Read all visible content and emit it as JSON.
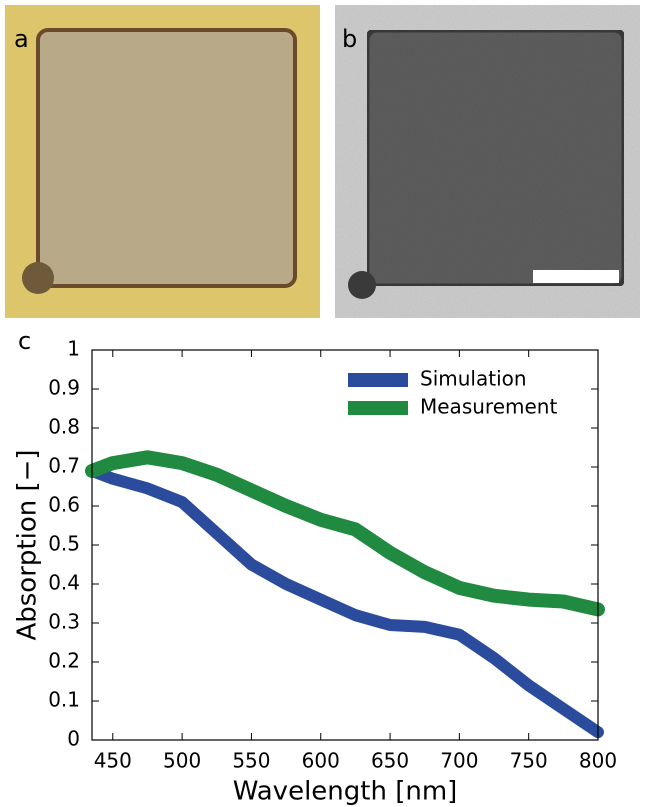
{
  "panel_labels": [
    "a",
    "b",
    "c"
  ],
  "chart_data": {
    "type": "line",
    "xlabel": "Wavelength [nm]",
    "ylabel": "Absorption [−]",
    "x": [
      435,
      450,
      475,
      500,
      525,
      550,
      575,
      600,
      625,
      650,
      675,
      700,
      725,
      750,
      775,
      800
    ],
    "series": [
      {
        "name": "Simulation",
        "color": "#2b4c9c",
        "values": [
          0.69,
          0.67,
          0.645,
          0.61,
          0.53,
          0.45,
          0.4,
          0.36,
          0.32,
          0.295,
          0.29,
          0.27,
          0.21,
          0.14,
          0.08,
          0.02
        ]
      },
      {
        "name": "Measurement",
        "color": "#1f8a40",
        "values": [
          0.69,
          0.71,
          0.725,
          0.71,
          0.68,
          0.64,
          0.6,
          0.565,
          0.54,
          0.48,
          0.43,
          0.39,
          0.37,
          0.36,
          0.355,
          0.335
        ]
      }
    ],
    "xlim": [
      435,
      800
    ],
    "xticks": [
      450,
      500,
      550,
      600,
      650,
      700,
      750,
      800
    ],
    "ylim": [
      0,
      1
    ],
    "yticks": [
      0,
      0.1,
      0.2,
      0.3,
      0.4,
      0.5,
      0.6,
      0.7,
      0.8,
      0.9,
      1
    ],
    "legend": "upper right",
    "grid": false
  }
}
